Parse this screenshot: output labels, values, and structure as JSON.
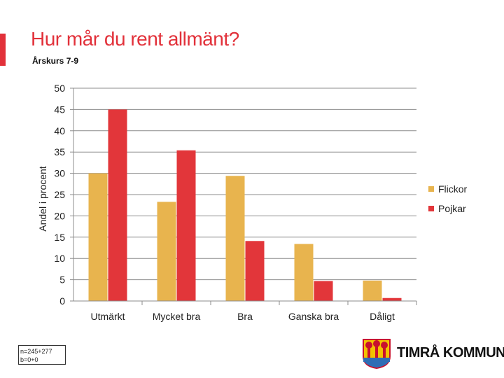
{
  "header": {
    "title": "Hur mår du rent allmänt?",
    "subtitle": "Årskurs 7-9"
  },
  "colors": {
    "accent": "#e2313a",
    "flickor": "#e8b44e",
    "pojkar": "#e2363a"
  },
  "chart_data": {
    "type": "bar",
    "title": "",
    "xlabel": "",
    "ylabel": "Andel i procent",
    "ylim": [
      0,
      50
    ],
    "yticks": [
      0,
      5,
      10,
      15,
      20,
      25,
      30,
      35,
      40,
      45,
      50
    ],
    "grid": true,
    "legend_position": "right",
    "categories": [
      "Utmärkt",
      "Mycket bra",
      "Bra",
      "Ganska bra",
      "Dåligt"
    ],
    "series": [
      {
        "name": "Flickor",
        "color": "#e8b44e",
        "values": [
          30,
          23.3,
          29.4,
          13.4,
          4.8
        ]
      },
      {
        "name": "Pojkar",
        "color": "#e2363a",
        "values": [
          45,
          35.4,
          14.1,
          4.7,
          0.7
        ]
      }
    ]
  },
  "footer": {
    "sample_line1": "n=245+277",
    "sample_line2": "b=0+0",
    "logo_text": "TIMRÅ KOMMUN",
    "logo_icon": "municipal-coat-of-arms-icon"
  }
}
